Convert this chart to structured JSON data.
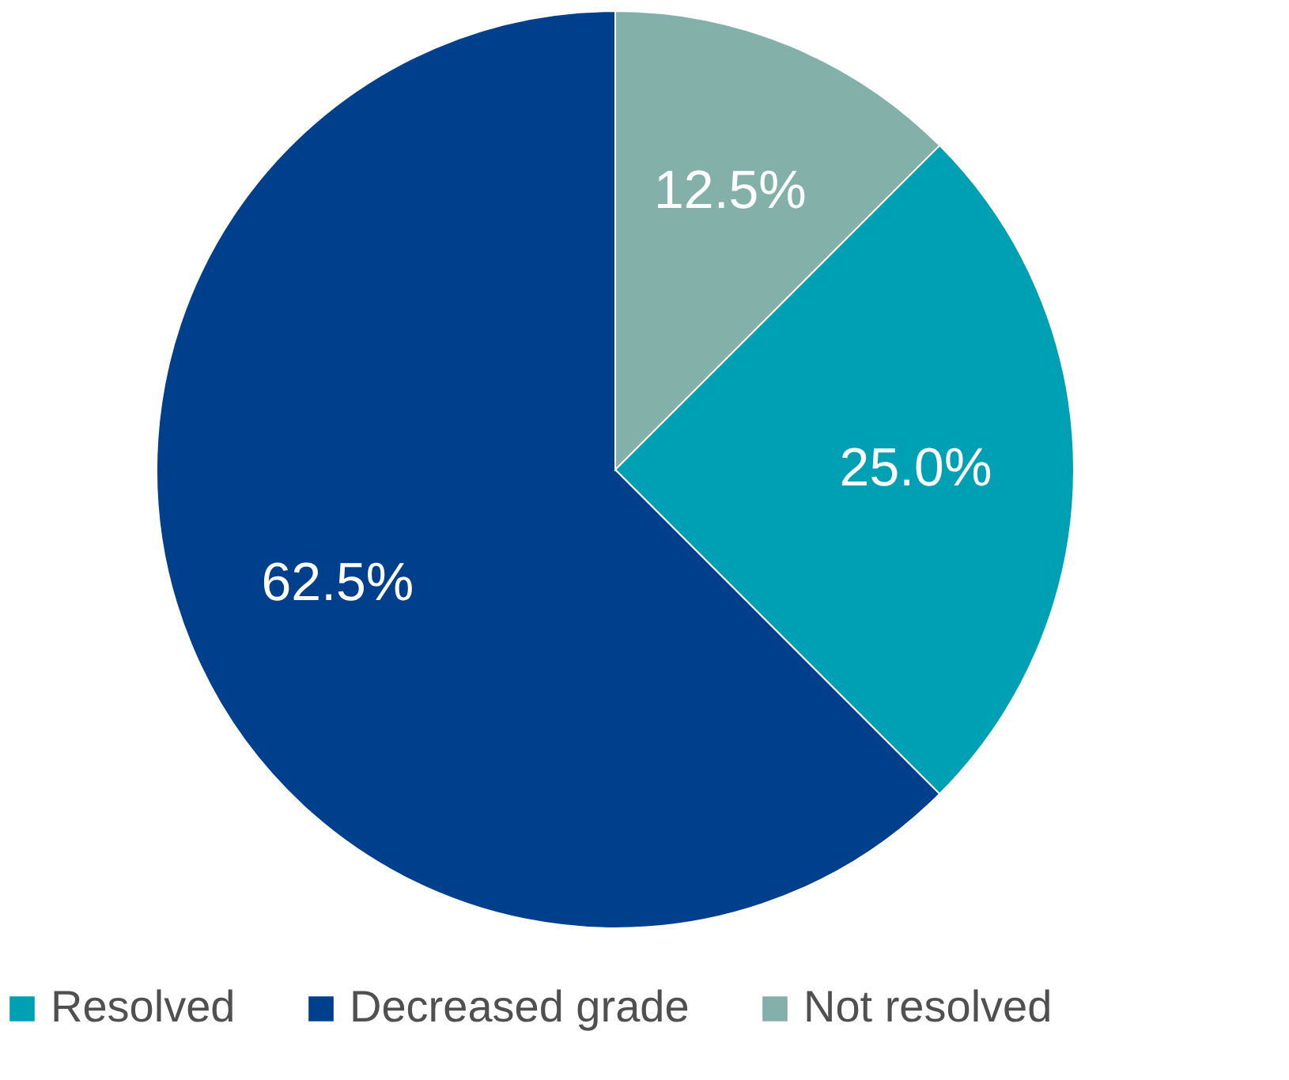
{
  "chart_data": {
    "type": "pie",
    "categories": [
      "Resolved",
      "Decreased grade",
      "Not resolved"
    ],
    "values": [
      25.0,
      62.5,
      12.5
    ],
    "colors": [
      "#00a0b4",
      "#003f8c",
      "#84b0aa"
    ],
    "value_labels": [
      "25.0%",
      "62.5%",
      "12.5%"
    ],
    "legend": "bottom"
  }
}
